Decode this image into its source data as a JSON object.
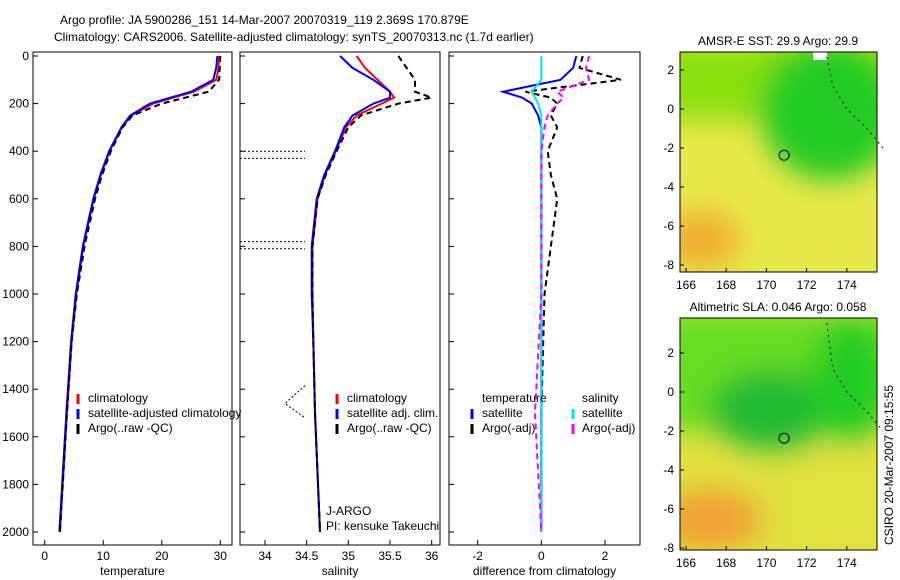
{
  "title_line1": "Argo profile: JA 5900286_151 14-Mar-2007 20070319_119 2.369S 170.879E",
  "title_line2": "Climatology: CARS2006. Satellite-adjusted climatology: synTS_20070313.nc (1.7d earlier)",
  "side_label": "CSIRO 20-Mar-2007 09:15:55",
  "chart_data": [
    {
      "type": "line",
      "xlabel": "temperature",
      "xlim": [
        -2,
        32
      ],
      "xticks": [
        0,
        10,
        20,
        30
      ],
      "ylim": [
        0,
        2050
      ],
      "yticks": [
        0,
        200,
        400,
        600,
        800,
        1000,
        1200,
        1400,
        1600,
        1800,
        2000
      ],
      "legend": [
        "climatology",
        "satellite-adjusted climatology",
        "Argo(..raw -QC)"
      ],
      "depth": [
        0,
        50,
        100,
        150,
        200,
        250,
        300,
        400,
        500,
        600,
        800,
        1000,
        1200,
        1500,
        2000
      ],
      "series": [
        {
          "name": "climatology",
          "color": "#ff0000",
          "values": [
            29.8,
            29.7,
            29.3,
            25.5,
            18.5,
            14.8,
            13.2,
            11.1,
            9.6,
            8.4,
            6.6,
            5.4,
            4.6,
            3.8,
            2.6
          ]
        },
        {
          "name": "satellite",
          "color": "#0000ff",
          "values": [
            29.5,
            29.3,
            28.8,
            25,
            18,
            14.6,
            13.1,
            11,
            9.5,
            8.3,
            6.5,
            5.3,
            4.5,
            3.7,
            2.5
          ]
        },
        {
          "name": "argo",
          "color": "#000000",
          "values": [
            30,
            29.9,
            29.8,
            28,
            20,
            15,
            13.3,
            11.3,
            9.8,
            8.6,
            6.8,
            5.5,
            4.6,
            3.8,
            2.6
          ]
        }
      ]
    },
    {
      "type": "line",
      "xlabel": "salinity",
      "xlim": [
        33.7,
        36.1
      ],
      "xticks": [
        34,
        34.5,
        35,
        35.5,
        36
      ],
      "legend": [
        "climatology",
        "satellite adj. clim.",
        "Argo(..raw -QC)"
      ],
      "note": [
        "J-ARGO",
        "PI: kensuke Takeuchi"
      ],
      "depth": [
        0,
        50,
        100,
        150,
        175,
        200,
        250,
        300,
        400,
        500,
        600,
        800,
        1000,
        1200,
        1500,
        2000
      ],
      "series": [
        {
          "name": "climatology",
          "color": "#ff0000",
          "values": [
            35.1,
            35.2,
            35.35,
            35.5,
            35.55,
            35.4,
            35.1,
            34.97,
            34.85,
            34.72,
            34.63,
            34.57,
            34.57,
            34.58,
            34.6,
            34.66
          ]
        },
        {
          "name": "satellite",
          "color": "#0000ff",
          "values": [
            34.9,
            35.05,
            35.3,
            35.5,
            35.5,
            35.3,
            35.05,
            34.95,
            34.84,
            34.71,
            34.62,
            34.56,
            34.56,
            34.58,
            34.6,
            34.66
          ]
        },
        {
          "name": "argo",
          "color": "#000000",
          "values": [
            35.6,
            35.7,
            35.8,
            35.8,
            36.0,
            35.6,
            35.15,
            35.0,
            34.86,
            34.73,
            34.63,
            34.57,
            34.57,
            34.58,
            34.6,
            34.66
          ]
        }
      ]
    },
    {
      "type": "line",
      "xlabel": "difference from climatology",
      "xlim": [
        -2.9,
        3.1
      ],
      "xticks": [
        -2,
        0,
        2
      ],
      "legend_t": [
        "temperature",
        "satellite",
        "Argo(-adj)"
      ],
      "legend_s": [
        "salinity",
        "satellite",
        "Argo(-adj)"
      ],
      "depth": [
        0,
        50,
        100,
        150,
        175,
        200,
        250,
        300,
        400,
        500,
        600,
        800,
        1000,
        1500,
        2000
      ],
      "series": [
        {
          "name": "temp satellite",
          "color": "#0000ff",
          "values": [
            1.1,
            1.0,
            0.6,
            -1.2,
            -0.6,
            -0.3,
            -0.1,
            0,
            0,
            0,
            0,
            0,
            0,
            0,
            0
          ]
        },
        {
          "name": "temp argo",
          "color": "#000000",
          "values": [
            1.3,
            1.2,
            2.5,
            -0.5,
            0.3,
            0.5,
            0.3,
            0.5,
            0.2,
            0.3,
            0.5,
            0.3,
            0.1,
            0,
            0
          ]
        },
        {
          "name": "sal satellite",
          "color": "#00e5ee",
          "values": [
            0,
            0,
            0,
            -0.3,
            -0.2,
            -0.1,
            0,
            0,
            0,
            0,
            0,
            0,
            0,
            0,
            0
          ]
        },
        {
          "name": "sal argo",
          "color": "#ff00ff",
          "values": [
            1.5,
            1.4,
            1.5,
            0.5,
            0.7,
            0.5,
            0.2,
            0.1,
            0,
            0,
            0,
            0,
            0,
            -0.2,
            0
          ]
        }
      ]
    },
    {
      "type": "heatmap",
      "title": "AMSR-E SST: 29.9 Argo: 29.9",
      "xticks": [
        166,
        168,
        170,
        172,
        174
      ],
      "yticks": [
        2,
        0,
        -2,
        -4,
        -6,
        -8
      ],
      "argo": [
        170.879,
        -2.369
      ]
    },
    {
      "type": "heatmap",
      "title": "Altimetric SLA: 0.046 Argo: 0.058",
      "xticks": [
        166,
        168,
        170,
        172,
        174
      ],
      "yticks": [
        2,
        0,
        -2,
        -4,
        -6,
        -8
      ],
      "argo": [
        170.879,
        -2.369
      ]
    }
  ]
}
